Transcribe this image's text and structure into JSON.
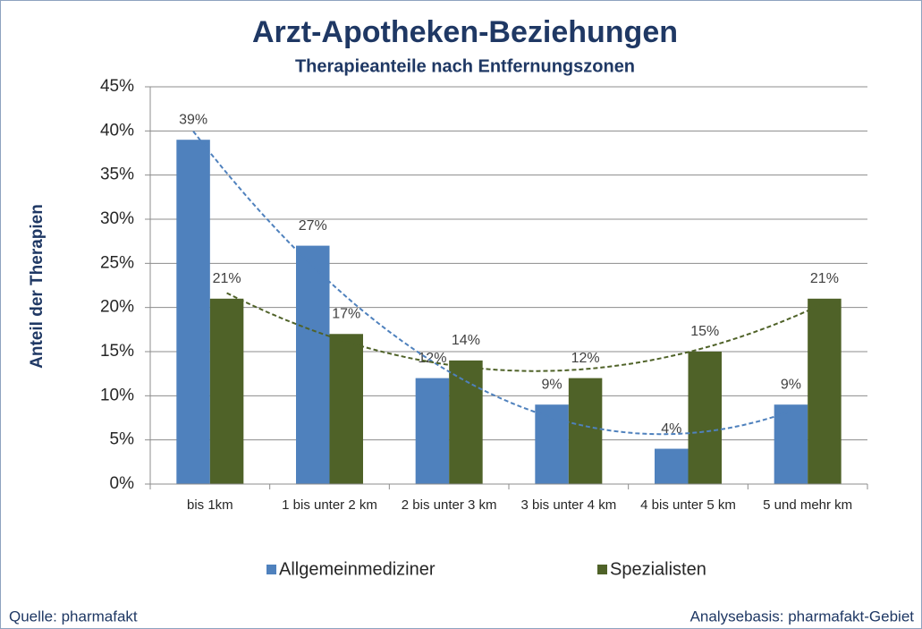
{
  "chart_data": {
    "type": "bar",
    "title": "Arzt-Apotheken-Beziehungen",
    "subtitle": "Therapieanteile nach Entfernungszonen",
    "y_label": "Anteil der Therapien",
    "categories": [
      "bis 1km",
      "1 bis unter 2 km",
      "2 bis unter 3 km",
      "3 bis unter 4 km",
      "4 bis unter 5 km",
      "5 und mehr km"
    ],
    "series": [
      {
        "name": "Allgemeinmediziner",
        "color": "#4f81bd",
        "trendline_color": "#4f81bd",
        "trendline_order": 2,
        "values": [
          39,
          27,
          12,
          9,
          4,
          9
        ],
        "value_labels": [
          "39%",
          "27%",
          "12%",
          "9%",
          "4%",
          "9%"
        ]
      },
      {
        "name": "Spezialisten",
        "color": "#4f6228",
        "trendline_color": "#4f6228",
        "trendline_order": 2,
        "values": [
          21,
          17,
          14,
          12,
          15,
          21
        ],
        "value_labels": [
          "21%",
          "17%",
          "14%",
          "12%",
          "15%",
          "21%"
        ]
      }
    ],
    "ylim": [
      0,
      45
    ],
    "yticks": [
      {
        "value": 0,
        "label": "0%"
      },
      {
        "value": 5,
        "label": "5%"
      },
      {
        "value": 10,
        "label": "10%"
      },
      {
        "value": 15,
        "label": "15%"
      },
      {
        "value": 20,
        "label": "20%"
      },
      {
        "value": 25,
        "label": "25%"
      },
      {
        "value": 30,
        "label": "30%"
      },
      {
        "value": 35,
        "label": "35%"
      },
      {
        "value": 40,
        "label": "40%"
      },
      {
        "value": 45,
        "label": "45%"
      }
    ],
    "grid": true,
    "legend": "bottom",
    "source": "Quelle: pharmafakt",
    "note": "Analysebasis: pharmafakt-Gebiet"
  }
}
